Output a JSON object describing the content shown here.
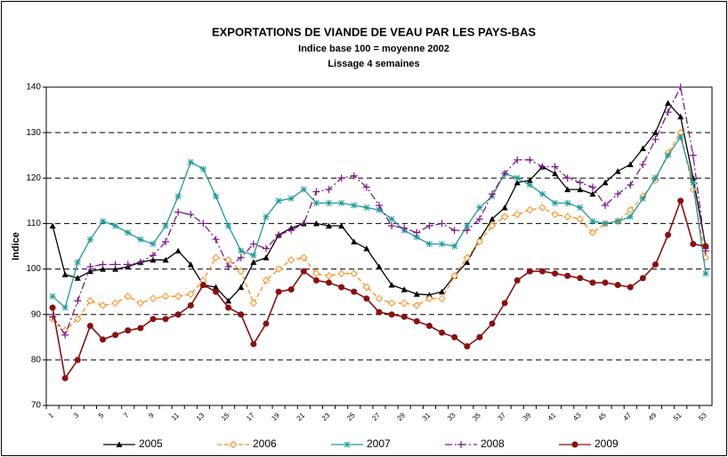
{
  "chart_data": {
    "type": "line",
    "title": "EXPORTATIONS DE VIANDE DE VEAU PAR LES PAYS-BAS",
    "subtitle": "Indice base 100 = moyenne 2002",
    "subtitle2": "Lissage 4 semaines",
    "y_label": "Indice",
    "categories": [
      1,
      null,
      3,
      null,
      5,
      null,
      7,
      null,
      9,
      null,
      11,
      null,
      13,
      null,
      15,
      null,
      17,
      null,
      19,
      null,
      21,
      null,
      23,
      null,
      25,
      null,
      27,
      null,
      29,
      null,
      31,
      null,
      33,
      null,
      35,
      null,
      37,
      null,
      39,
      null,
      41,
      null,
      43,
      null,
      45,
      null,
      47,
      null,
      49,
      null,
      51,
      null,
      53
    ],
    "ylim": [
      70,
      140
    ],
    "yticks": [
      70,
      80,
      90,
      100,
      110,
      120,
      130,
      140
    ],
    "grid": true,
    "legend": "bottom",
    "series": [
      {
        "name": "2005",
        "color": "#000000",
        "marker": "triangle",
        "dash": "solid",
        "values": [
          109.5,
          98.8,
          98,
          99.5,
          100,
          100,
          100.5,
          101.5,
          102,
          102,
          104,
          101,
          96.5,
          96,
          93,
          96,
          101.5,
          102.5,
          107.5,
          109,
          110,
          110,
          109.5,
          109.5,
          106,
          104.5,
          100.5,
          96.5,
          95.5,
          94.5,
          94.3,
          95,
          98.5,
          101.5,
          106.5,
          111,
          113.5,
          119,
          119.5,
          122.5,
          121,
          117.5,
          117.5,
          116.5,
          119,
          121.5,
          123,
          126.5,
          130,
          136.5,
          133.5,
          120,
          105
        ]
      },
      {
        "name": "2006",
        "color": "#ff8c1a",
        "marker": "diamond",
        "dash": "dashed",
        "values": [
          89,
          86.5,
          89,
          93,
          92,
          92.5,
          94,
          92.5,
          93.5,
          94,
          94,
          94.5,
          97.5,
          102.5,
          102,
          99.5,
          92.5,
          97.5,
          100,
          102,
          102.5,
          99,
          98.5,
          99,
          99,
          96,
          93.5,
          92.5,
          92.5,
          92,
          93.5,
          93.5,
          98.5,
          102.5,
          106,
          109.5,
          111.5,
          112,
          113,
          113.5,
          112,
          111.5,
          111,
          108,
          110,
          110.5,
          113,
          116,
          119.5,
          125.5,
          130,
          117.5,
          102.5
        ]
      },
      {
        "name": "2007",
        "color": "#1f9a9a",
        "marker": "star",
        "dash": "solid",
        "values": [
          94,
          91.5,
          101.5,
          106.5,
          110.5,
          109.5,
          108,
          106.5,
          105.5,
          109.5,
          116,
          123.5,
          122,
          116,
          109.5,
          104,
          103,
          111.5,
          115,
          115.5,
          117.5,
          114.5,
          114.5,
          114.5,
          114,
          113.5,
          113,
          111,
          108.5,
          107,
          105.5,
          105.5,
          105,
          109.5,
          113.5,
          116,
          121,
          120,
          118.5,
          116.5,
          114.5,
          114.5,
          113.5,
          110.5,
          110,
          110.5,
          111.5,
          115.5,
          120,
          125,
          129,
          119,
          99
        ]
      },
      {
        "name": "2008",
        "color": "#7b1a8c",
        "marker": "plus",
        "dash": "dashdot",
        "values": [
          89.5,
          85.5,
          93,
          100.5,
          101,
          101,
          101,
          101.5,
          103,
          106,
          112.5,
          112,
          110,
          106.5,
          100.5,
          102.5,
          105.5,
          104.5,
          107.5,
          108.5,
          110,
          117,
          117.5,
          120,
          120.5,
          118,
          114,
          109.5,
          109,
          108,
          109.5,
          110,
          108.5,
          108.5,
          111,
          116.5,
          121,
          124,
          124,
          122.5,
          122.5,
          120,
          119,
          118,
          114,
          116.5,
          118.5,
          123,
          128.5,
          134.5,
          140,
          125,
          104
        ]
      },
      {
        "name": "2009",
        "color": "#8b1010",
        "marker": "circle",
        "dash": "solid",
        "values": [
          91.5,
          76,
          80,
          87.5,
          84.5,
          85.5,
          86.5,
          87,
          89,
          89,
          90,
          92,
          96.5,
          95,
          91.5,
          90,
          83.5,
          88,
          95,
          95.5,
          99.5,
          97.5,
          97,
          96,
          95,
          93.5,
          90.5,
          90,
          89.5,
          88.5,
          87.5,
          86,
          85,
          83,
          85,
          88,
          92.5,
          97.5,
          99.5,
          99.5,
          99,
          98.5,
          98,
          97,
          97,
          96.5,
          96,
          98,
          101,
          107.5,
          115,
          105.5,
          105
        ]
      }
    ]
  }
}
